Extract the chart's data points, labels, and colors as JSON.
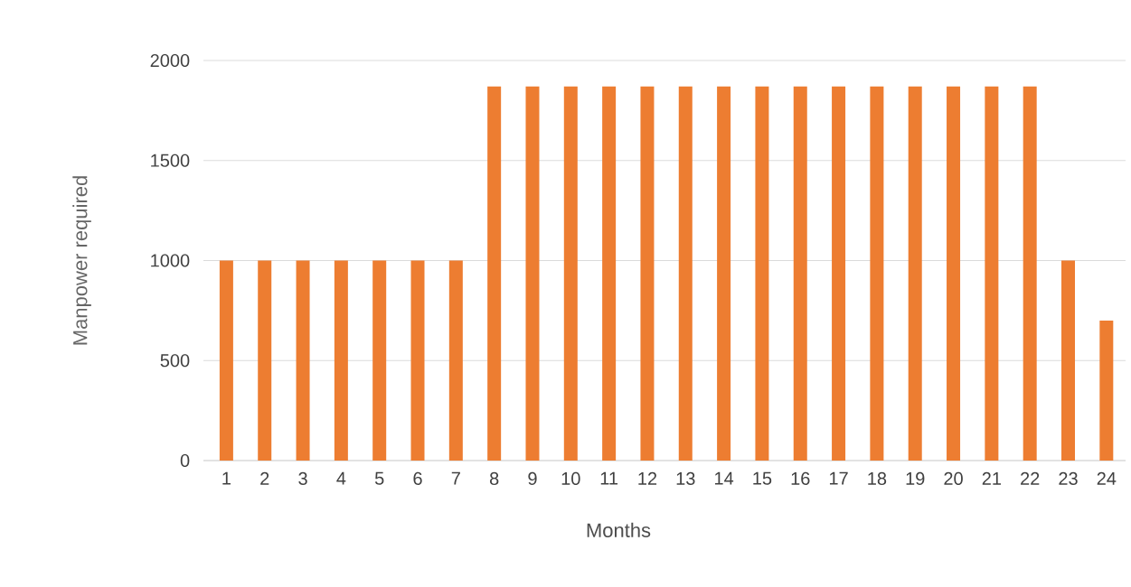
{
  "chart_data": {
    "type": "bar",
    "xlabel": "Months",
    "ylabel": "Manpower required",
    "categories": [
      "1",
      "2",
      "3",
      "4",
      "5",
      "6",
      "7",
      "8",
      "9",
      "10",
      "11",
      "12",
      "13",
      "14",
      "15",
      "16",
      "17",
      "18",
      "19",
      "20",
      "21",
      "22",
      "23",
      "24"
    ],
    "values": [
      1000,
      1000,
      1000,
      1000,
      1000,
      1000,
      1000,
      1870,
      1870,
      1870,
      1870,
      1870,
      1870,
      1870,
      1870,
      1870,
      1870,
      1870,
      1870,
      1870,
      1870,
      1870,
      1000,
      700
    ],
    "color": "#ed7d31",
    "ylim": [
      0,
      2000
    ],
    "yticks": [
      0,
      500,
      1000,
      1500,
      2000
    ],
    "grid": "y"
  }
}
